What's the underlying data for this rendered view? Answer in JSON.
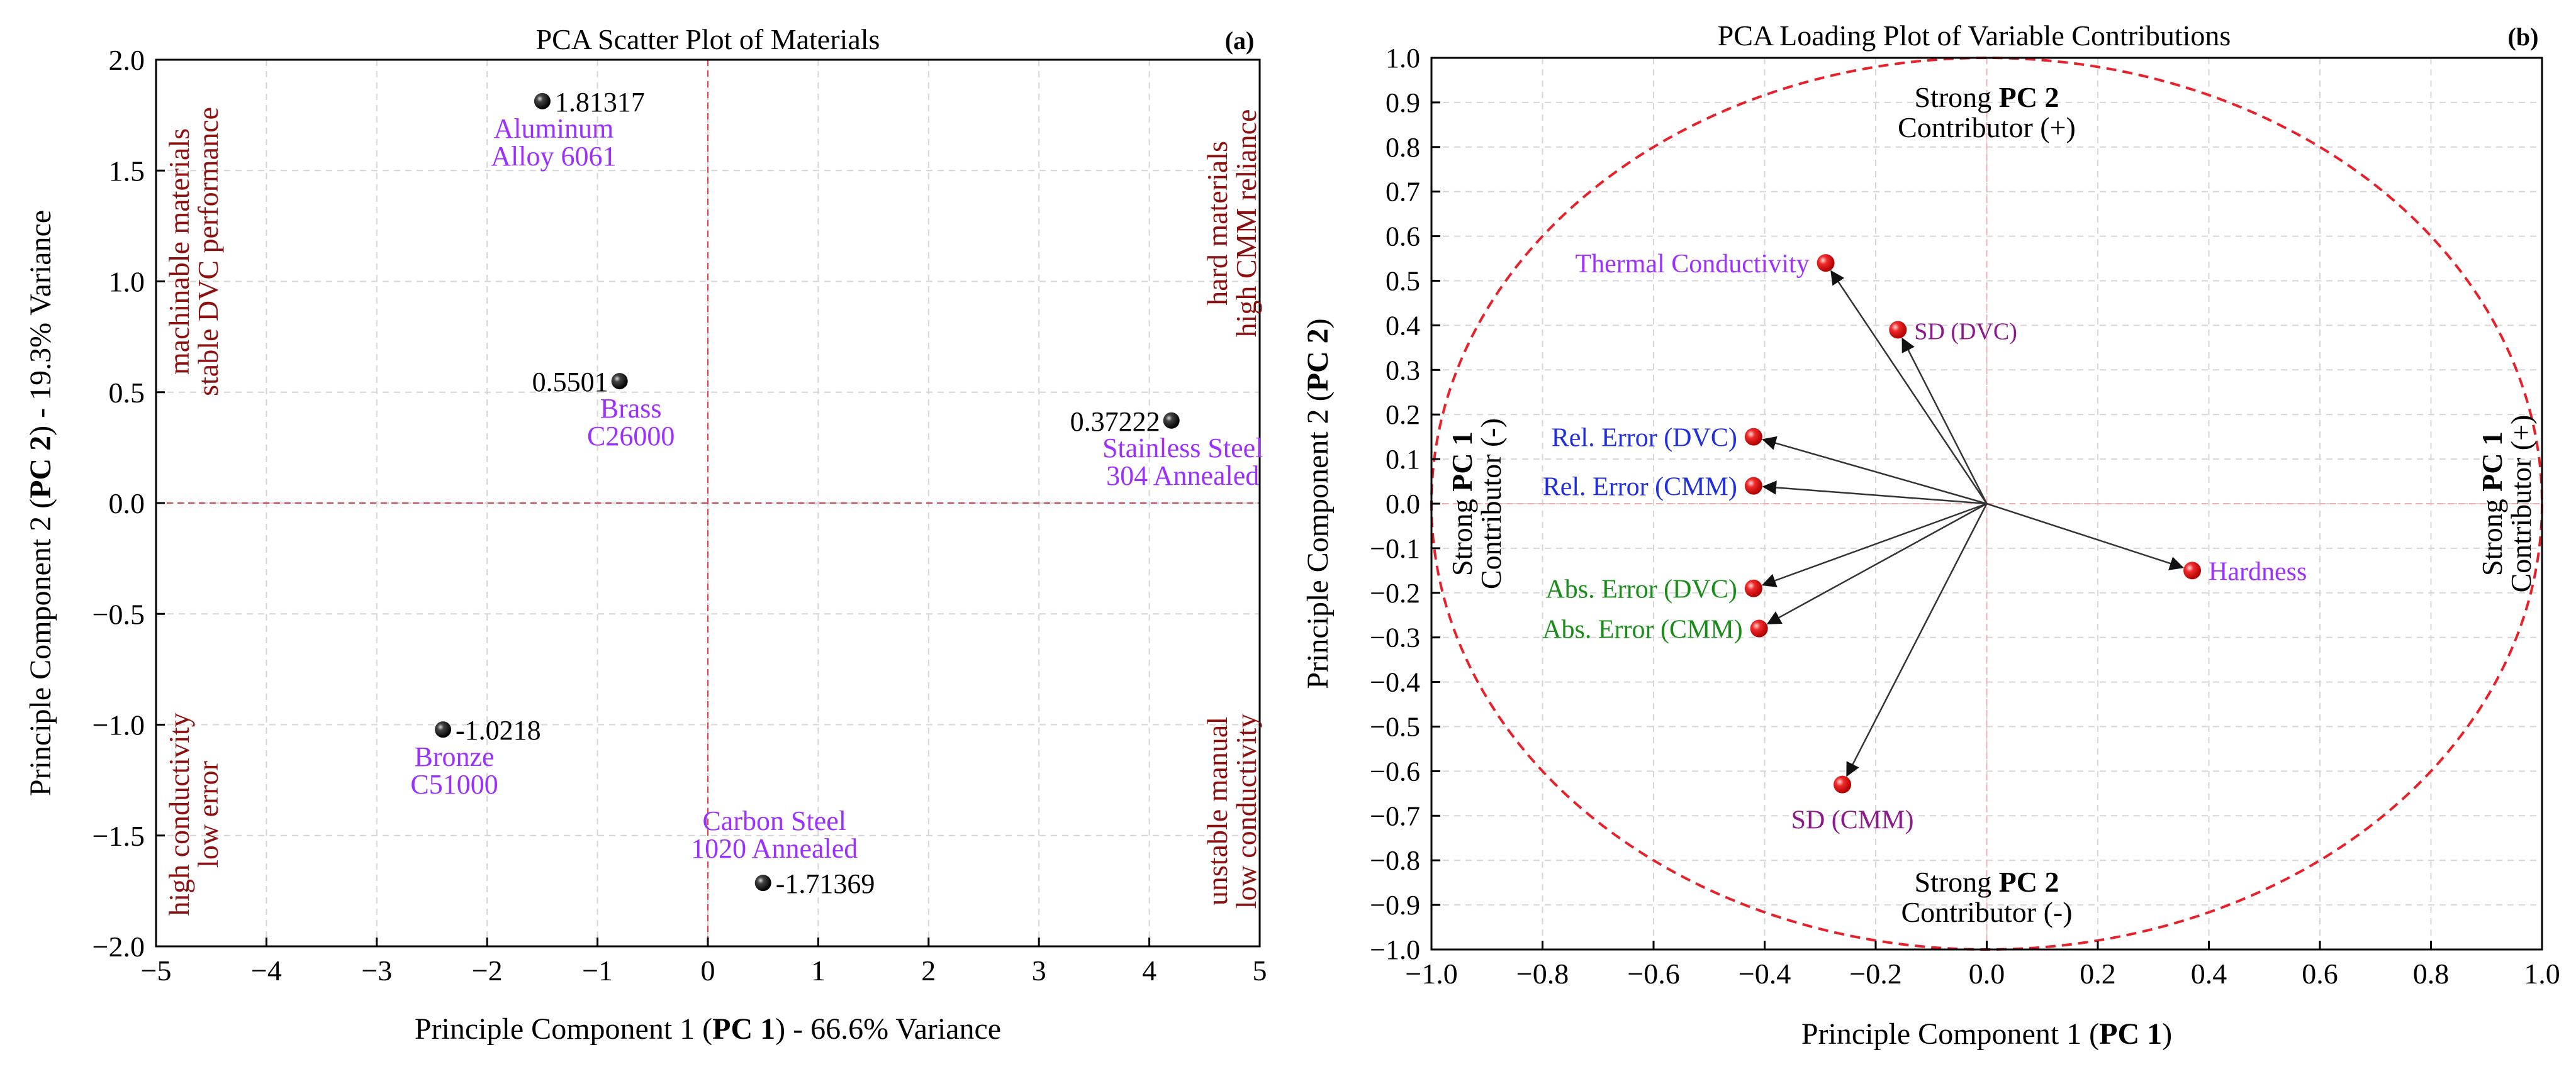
{
  "chart_data": [
    {
      "type": "scatter",
      "panel_label": "(a)",
      "title": "PCA Scatter Plot of Materials",
      "xlabel": {
        "pre": "Principle Component 1 (",
        "bold": "PC 1",
        "post": ") - 66.6% Variance"
      },
      "ylabel": {
        "pre": "Principle Component 2 (",
        "bold": "PC 2",
        "post": ") - 19.3% Variance"
      },
      "xlim": [
        -5,
        5
      ],
      "ylim": [
        -2.0,
        2.0
      ],
      "x_ticks": [
        -5,
        -4,
        -3,
        -2,
        -1,
        0,
        1,
        2,
        3,
        4,
        5
      ],
      "x_tick_labels": [
        "−5",
        "−4",
        "−3",
        "−2",
        "−1",
        "0",
        "1",
        "2",
        "3",
        "4",
        "5"
      ],
      "y_ticks": [
        2.0,
        1.5,
        1.0,
        0.5,
        0.0,
        -0.5,
        -1.0,
        -1.5,
        -2.0
      ],
      "y_tick_labels": [
        "2.0",
        "1.5",
        "1.0",
        "0.5",
        "0.0",
        "−0.5",
        "−1.0",
        "−1.5",
        "−2.0"
      ],
      "grid": true,
      "reference_lines": {
        "x": 0,
        "y": 0
      },
      "points": [
        {
          "x": -1.5,
          "y": 1.81317,
          "value_label": "1.81317",
          "value_side": "right",
          "name_lines": [
            "Aluminum",
            "Alloy 6061"
          ]
        },
        {
          "x": -0.8,
          "y": 0.5501,
          "value_label": "0.5501",
          "value_side": "left",
          "name_lines": [
            "Brass",
            "C26000"
          ]
        },
        {
          "x": 4.2,
          "y": 0.37222,
          "value_label": "0.37222",
          "value_side": "left",
          "name_lines": [
            "Stainless Steel",
            "304 Annealed"
          ]
        },
        {
          "x": -2.4,
          "y": -1.0218,
          "value_label": "-1.0218",
          "value_side": "right",
          "name_lines": [
            "Bronze",
            "C51000"
          ]
        },
        {
          "x": 0.5,
          "y": -1.71369,
          "value_label": "-1.71369",
          "value_side": "right",
          "name_lines": [
            "Carbon Steel",
            "1020 Annealed"
          ],
          "name_position": "above"
        }
      ],
      "quadrant_annotations": [
        {
          "corner": "top-left",
          "lines": [
            "machinable materials",
            "stable DVC performance"
          ]
        },
        {
          "corner": "top-right",
          "lines": [
            "hard materials",
            "high CMM reliance"
          ]
        },
        {
          "corner": "bottom-left",
          "lines": [
            "high conductivity",
            "low error"
          ]
        },
        {
          "corner": "bottom-right",
          "lines": [
            "unstable manual",
            "low conductivity"
          ]
        }
      ]
    },
    {
      "type": "scatter",
      "subtype": "loading-plot",
      "panel_label": "(b)",
      "title": "PCA Loading Plot of Variable Contributions",
      "xlabel": {
        "pre": "Principle Component 1 (",
        "bold": "PC 1",
        "post": ")"
      },
      "ylabel": {
        "pre": "Principle Component 2 (",
        "bold": "PC 2",
        "post": ")"
      },
      "xlim": [
        -1.0,
        1.0
      ],
      "ylim": [
        -1.0,
        1.0
      ],
      "x_ticks": [
        -1.0,
        -0.8,
        -0.6,
        -0.4,
        -0.2,
        0.0,
        0.2,
        0.4,
        0.6,
        0.8,
        1.0
      ],
      "x_tick_labels": [
        "−1.0",
        "−0.8",
        "−0.6",
        "−0.4",
        "−0.2",
        "0.0",
        "0.2",
        "0.4",
        "0.6",
        "0.8",
        "1.0"
      ],
      "y_ticks": [
        1.0,
        0.9,
        0.8,
        0.7,
        0.6,
        0.5,
        0.4,
        0.3,
        0.2,
        0.1,
        0.0,
        -0.1,
        -0.2,
        -0.3,
        -0.4,
        -0.5,
        -0.6,
        -0.7,
        -0.8,
        -0.9,
        -1.0
      ],
      "y_tick_labels": [
        "1.0",
        "0.9",
        "0.8",
        "0.7",
        "0.6",
        "0.5",
        "0.4",
        "0.3",
        "0.2",
        "0.1",
        "0.0",
        "−0.1",
        "−0.2",
        "−0.3",
        "−0.4",
        "−0.5",
        "−0.6",
        "−0.7",
        "−0.8",
        "−0.9",
        "−1.0"
      ],
      "grid": true,
      "unit_circle": true,
      "vectors": [
        {
          "name": "Thermal Conductivity",
          "x": -0.29,
          "y": 0.54,
          "color": "#9b30ff",
          "label_side": "left"
        },
        {
          "name": "SD (DVC)",
          "x": -0.16,
          "y": 0.39,
          "color": "#8b1a8b",
          "label_side": "right"
        },
        {
          "name": "Rel. Error (DVC)",
          "x": -0.42,
          "y": 0.15,
          "color": "#1f2fe0",
          "label_side": "left"
        },
        {
          "name": "Rel. Error (CMM)",
          "x": -0.42,
          "y": 0.04,
          "color": "#1f2fe0",
          "label_side": "left"
        },
        {
          "name": "Abs. Error (DVC)",
          "x": -0.42,
          "y": -0.19,
          "color": "#1a8c1a",
          "label_side": "left"
        },
        {
          "name": "Abs. Error (CMM)",
          "x": -0.41,
          "y": -0.28,
          "color": "#1a8c1a",
          "label_side": "left"
        },
        {
          "name": "SD (CMM)",
          "x": -0.26,
          "y": -0.63,
          "color": "#8b1a8b",
          "label_side": "below"
        },
        {
          "name": "Hardness",
          "x": 0.37,
          "y": -0.15,
          "color": "#9b30ff",
          "label_side": "right"
        }
      ],
      "annotations": {
        "top": {
          "pre": "Strong ",
          "bold": "PC 2",
          "line2": "Contributor (+)"
        },
        "bottom": {
          "pre": "Strong ",
          "bold": "PC 2",
          "line2": "Contributor (-)"
        },
        "left": {
          "pre": "Strong ",
          "bold": "PC 1",
          "line2": "Contributor (-)"
        },
        "right": {
          "pre": "Strong ",
          "bold": "PC 1",
          "line2": "Contributor (+)"
        }
      }
    }
  ],
  "colors": {
    "axis": "#000000",
    "grid": "#d6d6d6",
    "reference": "#e8384a",
    "circle": "#e8202a",
    "material_name": "#9b30ff",
    "quadrant_note": "#8b1010",
    "arrow": "#333333",
    "marker_red": "#e81818",
    "marker_black": "#000000"
  }
}
